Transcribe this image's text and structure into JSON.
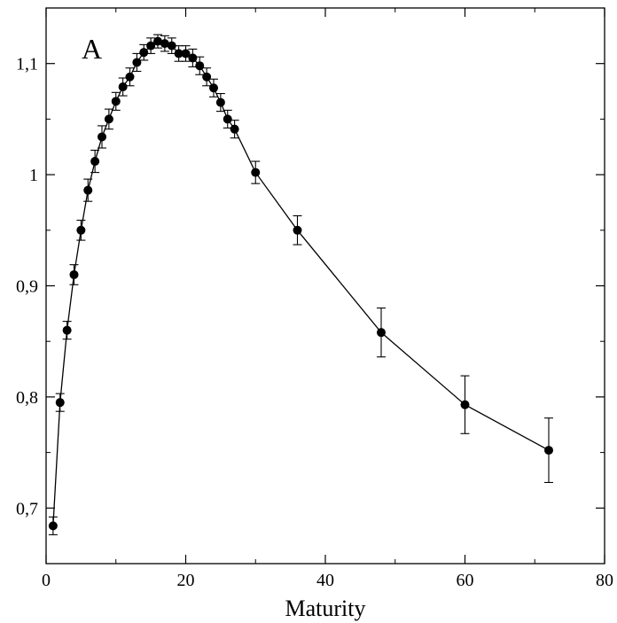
{
  "chart_data": {
    "type": "line",
    "title": "",
    "panel_label": "A",
    "xlabel": "Maturity",
    "ylabel": "",
    "xlim": [
      0,
      80
    ],
    "ylim": [
      0.65,
      1.15
    ],
    "x_ticks": [
      0,
      20,
      40,
      60,
      80
    ],
    "x_tick_labels": [
      "0",
      "20",
      "40",
      "60",
      "80"
    ],
    "y_ticks": [
      0.7,
      0.8,
      0.9,
      1.0,
      1.1
    ],
    "y_tick_labels": [
      "0,7",
      "0,8",
      "0,9",
      "1",
      "1,1"
    ],
    "grid": false,
    "legend": "none",
    "series": [
      {
        "marker": "filled-circle",
        "color": "#000000",
        "x": [
          1,
          2,
          3,
          4,
          5,
          6,
          7,
          8,
          9,
          10,
          11,
          12,
          13,
          14,
          15,
          16,
          17,
          18,
          19,
          20,
          21,
          22,
          23,
          24,
          25,
          26,
          27,
          30,
          36,
          48,
          60,
          72
        ],
        "y": [
          0.684,
          0.795,
          0.86,
          0.91,
          0.95,
          0.986,
          1.012,
          1.034,
          1.05,
          1.066,
          1.079,
          1.088,
          1.101,
          1.11,
          1.116,
          1.12,
          1.118,
          1.116,
          1.109,
          1.109,
          1.105,
          1.098,
          1.088,
          1.078,
          1.065,
          1.05,
          1.041,
          1.002,
          0.95,
          0.858,
          0.793,
          0.752
        ],
        "err": [
          0.008,
          0.008,
          0.008,
          0.009,
          0.009,
          0.01,
          0.01,
          0.01,
          0.009,
          0.008,
          0.008,
          0.008,
          0.008,
          0.007,
          0.007,
          0.006,
          0.007,
          0.007,
          0.007,
          0.007,
          0.008,
          0.008,
          0.008,
          0.008,
          0.008,
          0.008,
          0.008,
          0.01,
          0.013,
          0.022,
          0.026,
          0.029
        ]
      }
    ]
  }
}
